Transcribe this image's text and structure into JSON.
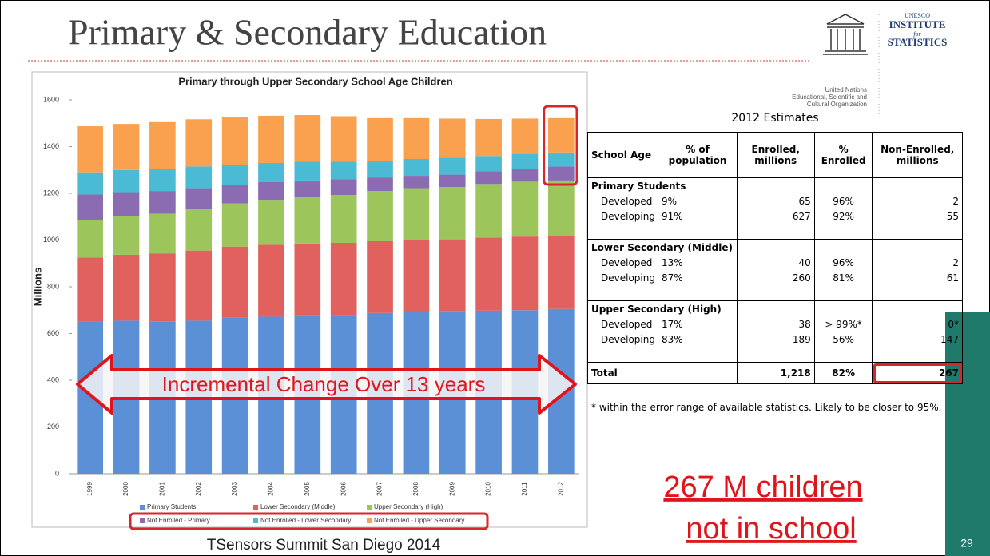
{
  "slide": {
    "title": "Primary & Secondary Education",
    "footer": "TSensors Summit San Diego 2014",
    "page": "29",
    "callout_line1": "267 M children",
    "callout_line2": "not in school",
    "arrow_text": "Incremental Change Over 13 years"
  },
  "logo": {
    "unesco": "UNESCO",
    "institute": "INSTITUTE",
    "for": "for",
    "statistics": "STATISTICS",
    "org_line1": "United Nations",
    "org_line2": "Educational, Scientific and",
    "org_line3": "Cultural Organization"
  },
  "chart_data": {
    "type": "stacked_bar",
    "title": "Primary through Upper Secondary School Age Children",
    "y_label": "Millions",
    "categories": [
      "1999",
      "2000",
      "2001",
      "2002",
      "2003",
      "2004",
      "2005",
      "2006",
      "2007",
      "2008",
      "2009",
      "2010",
      "2011",
      "2012"
    ],
    "ylim": [
      0,
      1600
    ],
    "yticks": [
      0,
      200,
      400,
      600,
      800,
      1000,
      1200,
      1400,
      1600
    ],
    "grid": false,
    "series": [
      {
        "name": "Primary Students",
        "color": "#5b8fd6",
        "values": [
          650,
          655,
          652,
          655,
          668,
          672,
          678,
          680,
          688,
          692,
          695,
          698,
          700,
          705
        ]
      },
      {
        "name": "Lower Secondary (Middle)",
        "color": "#e0615d",
        "values": [
          275,
          282,
          291,
          300,
          304,
          308,
          307,
          308,
          307,
          308,
          308,
          312,
          315,
          315
        ]
      },
      {
        "name": "Upper Secondary (High)",
        "color": "#9cc65b",
        "values": [
          162,
          166,
          170,
          177,
          185,
          192,
          198,
          205,
          215,
          222,
          224,
          230,
          235,
          235
        ]
      },
      {
        "name": "Not Enrolled - Primary",
        "color": "#8b6cb2",
        "values": [
          108,
          102,
          97,
          90,
          80,
          76,
          72,
          67,
          58,
          53,
          53,
          55,
          55,
          60
        ]
      },
      {
        "name": "Not Enrolled - Lower Secondary",
        "color": "#4bbad4",
        "values": [
          95,
          95,
          95,
          93,
          85,
          82,
          80,
          75,
          72,
          72,
          72,
          65,
          65,
          60
        ]
      },
      {
        "name": "Not Enrolled - Upper Secondary",
        "color": "#f9a14f",
        "values": [
          197,
          197,
          200,
          202,
          203,
          202,
          200,
          195,
          182,
          175,
          168,
          158,
          150,
          147
        ]
      }
    ]
  },
  "table": {
    "caption": "2012 Estimates",
    "header": [
      "School Age",
      "% of population",
      "Enrolled, millions",
      "% Enrolled",
      "Non-Enrolled, millions"
    ],
    "groups": [
      {
        "name": "Primary Students",
        "rows": [
          [
            "Developed",
            "9%",
            "65",
            "96%",
            "2"
          ],
          [
            "Developing",
            "91%",
            "627",
            "92%",
            "55"
          ]
        ]
      },
      {
        "name": "Lower Secondary (Middle)",
        "rows": [
          [
            "Developed",
            "13%",
            "40",
            "96%",
            "2"
          ],
          [
            "Developing",
            "87%",
            "260",
            "81%",
            "61"
          ]
        ]
      },
      {
        "name": "Upper Secondary (High)",
        "rows": [
          [
            "Developed",
            "17%",
            "38",
            "> 99%*",
            "0*"
          ],
          [
            "Developing",
            "83%",
            "189",
            "56%",
            "147"
          ]
        ]
      }
    ],
    "total": {
      "label": "Total",
      "enrolled": "1,218",
      "pct": "82%",
      "non_enrolled": "267"
    },
    "footnote": "* within the error range of available statistics. Likely to be closer to 95%."
  }
}
